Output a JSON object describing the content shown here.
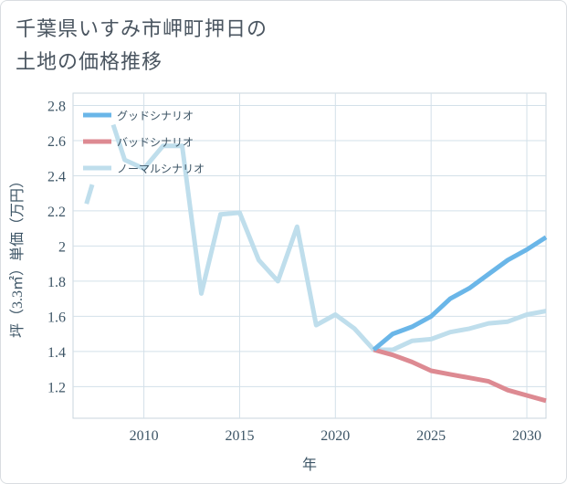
{
  "title": {
    "line1": "千葉県いすみ市岬町押日の",
    "line2": "土地の価格推移"
  },
  "chart_data": {
    "type": "line",
    "xlabel": "年",
    "ylabel": "坪（3.3㎡）単価（万円）",
    "xlim": [
      2006.3,
      2031
    ],
    "ylim": [
      1.02,
      2.87
    ],
    "x_ticks": [
      2010,
      2015,
      2020,
      2025,
      2030
    ],
    "y_ticks": [
      1.2,
      1.4,
      1.6,
      1.8,
      2,
      2.2,
      2.4,
      2.6,
      2.8
    ],
    "x_tick_labels": [
      "2010",
      "2015",
      "2020",
      "2025",
      "2030"
    ],
    "y_tick_labels": [
      "1.2",
      "1.4",
      "1.6",
      "1.8",
      "2",
      "2.2",
      "2.4",
      "2.6",
      "2.8"
    ],
    "grid": true,
    "legend_position": "top-left",
    "series": [
      {
        "name": "グッドシナリオ",
        "color": "#6ab6e8",
        "points": [
          [
            2022,
            1.41
          ],
          [
            2023,
            1.5
          ],
          [
            2024,
            1.54
          ],
          [
            2025,
            1.6
          ],
          [
            2026,
            1.7
          ],
          [
            2027,
            1.76
          ],
          [
            2028,
            1.84
          ],
          [
            2029,
            1.92
          ],
          [
            2030,
            1.98
          ],
          [
            2031,
            2.05
          ]
        ]
      },
      {
        "name": "バッドシナリオ",
        "color": "#dd8a92",
        "points": [
          [
            2022,
            1.41
          ],
          [
            2023,
            1.38
          ],
          [
            2024,
            1.34
          ],
          [
            2025,
            1.29
          ],
          [
            2026,
            1.27
          ],
          [
            2027,
            1.25
          ],
          [
            2028,
            1.23
          ],
          [
            2029,
            1.18
          ],
          [
            2030,
            1.15
          ],
          [
            2031,
            1.12
          ]
        ]
      },
      {
        "name": "ノーマルシナリオ",
        "color": "#bfdeec",
        "segments": [
          [
            [
              2007,
              2.24
            ],
            [
              2007.3,
              2.35
            ]
          ],
          [
            [
              2008.4,
              2.69
            ],
            [
              2009,
              2.49
            ],
            [
              2010,
              2.44
            ],
            [
              2011,
              2.57
            ],
            [
              2012,
              2.57
            ],
            [
              2013,
              1.73
            ],
            [
              2014,
              2.18
            ],
            [
              2015,
              2.19
            ],
            [
              2016,
              1.92
            ],
            [
              2017,
              1.8
            ],
            [
              2018,
              2.11
            ],
            [
              2019,
              1.55
            ],
            [
              2020,
              1.61
            ],
            [
              2021,
              1.53
            ],
            [
              2022,
              1.41
            ],
            [
              2023,
              1.41
            ],
            [
              2024,
              1.46
            ],
            [
              2025,
              1.47
            ],
            [
              2026,
              1.51
            ],
            [
              2027,
              1.53
            ],
            [
              2028,
              1.56
            ],
            [
              2029,
              1.57
            ],
            [
              2030,
              1.61
            ],
            [
              2031,
              1.63
            ]
          ]
        ]
      }
    ]
  }
}
